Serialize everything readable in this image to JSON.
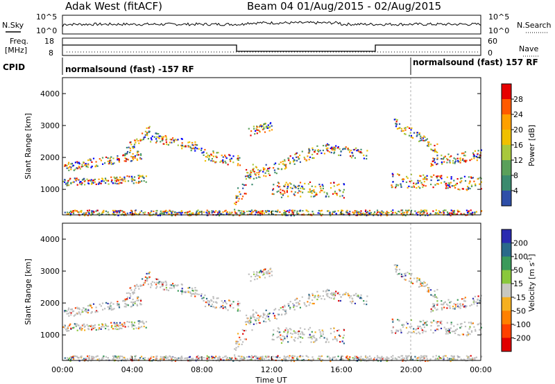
{
  "header": {
    "station": "Adak West (fitACF)",
    "beam": "Beam 04 01/Aug/2015 - 02/Aug/2015"
  },
  "top_panels": {
    "nsky_label": "N.Sky",
    "nsearch_label": "N.Search",
    "noise_ticks": [
      "10^5",
      "10^0"
    ],
    "freq_label": "Freq.",
    "freq_unit": "[MHz]",
    "freq_ticks": [
      "18",
      "8"
    ],
    "nave_label": "Nave",
    "nave_ticks": [
      "60",
      "0"
    ],
    "cpid_label": "CPID",
    "cpid_segments": [
      "normalsound (fast) -157 RF",
      "normalsound (fast) 157 RF"
    ]
  },
  "colors": {
    "power_scale": [
      "#0000ff",
      "#2f4fa8",
      "#3a8a6e",
      "#5aa05a",
      "#a8c83c",
      "#f0c000",
      "#ffa000",
      "#ff5a00",
      "#e60000"
    ],
    "velocity_scale": [
      "#2a2ab0",
      "#2a6a8a",
      "#3a9a5a",
      "#8ac83c",
      "#c8c8c0",
      "#f5b020",
      "#ff8000",
      "#ff4000",
      "#e00000"
    ],
    "ground_scatter": "#bebebe"
  },
  "chart_data": [
    {
      "type": "heatmap",
      "panel": "power",
      "ylabel": "Slant Range [km]",
      "ylim": [
        200,
        4500
      ],
      "yticks": [
        "1000",
        "2000",
        "3000",
        "4000"
      ],
      "xticks": [
        "00:00",
        "04:00",
        "08:00",
        "12:00",
        "16:00",
        "20:00",
        "00:00"
      ],
      "xlabel": "Time UT",
      "colorbar_label": "Power [dB]",
      "colorbar_ticks": [
        "4",
        "8",
        "12",
        "16",
        "20",
        "24",
        "28"
      ],
      "colorbar_range": [
        0,
        32
      ]
    },
    {
      "type": "heatmap",
      "panel": "velocity",
      "ylabel": "Slant Range [km]",
      "ylim": [
        200,
        4500
      ],
      "yticks": [
        "1000",
        "2000",
        "3000",
        "4000"
      ],
      "xticks": [
        "00:00",
        "04:00",
        "08:00",
        "12:00",
        "16:00",
        "20:00",
        "00:00"
      ],
      "xlabel": "Time UT",
      "colorbar_label": "Velocity [m s^-1]",
      "colorbar_ticks": [
        "200",
        "100",
        "50",
        "15",
        "-15",
        "-50",
        "-100",
        "-200"
      ]
    }
  ]
}
